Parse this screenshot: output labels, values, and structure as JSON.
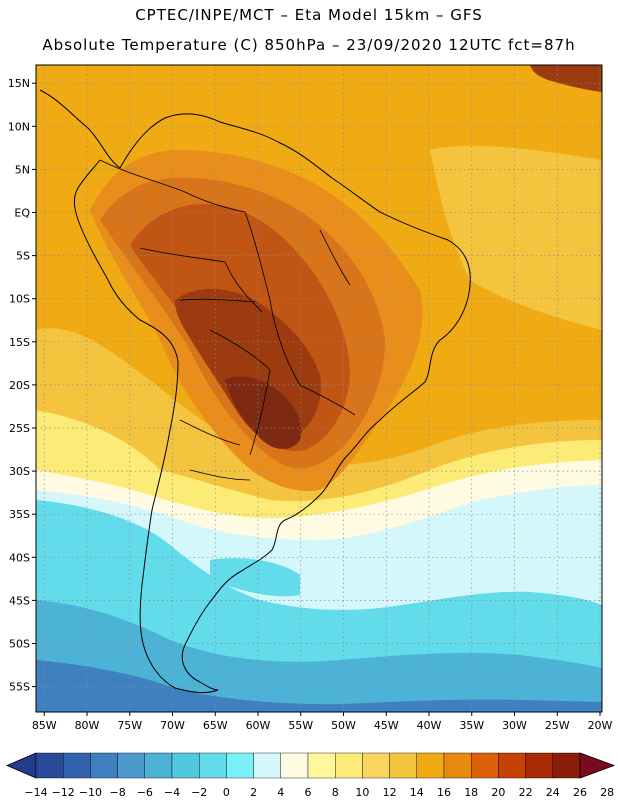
{
  "title": {
    "line1": "CPTEC/INPE/MCT –  Eta Model 15km – GFS",
    "line2": "Absolute Temperature (C) 850hPa – 23/09/2020 12UTC fct=87h"
  },
  "axes": {
    "lat_ticks": [
      {
        "label": "15N",
        "value": 15
      },
      {
        "label": "10N",
        "value": 10
      },
      {
        "label": "5N",
        "value": 5
      },
      {
        "label": "EQ",
        "value": 0
      },
      {
        "label": "5S",
        "value": -5
      },
      {
        "label": "10S",
        "value": -10
      },
      {
        "label": "15S",
        "value": -15
      },
      {
        "label": "20S",
        "value": -20
      },
      {
        "label": "25S",
        "value": -25
      },
      {
        "label": "30S",
        "value": -30
      },
      {
        "label": "35S",
        "value": -35
      },
      {
        "label": "40S",
        "value": -40
      },
      {
        "label": "45S",
        "value": -45
      },
      {
        "label": "50S",
        "value": -50
      },
      {
        "label": "55S",
        "value": -55
      }
    ],
    "lon_ticks": [
      {
        "label": "85W",
        "value": -85
      },
      {
        "label": "80W",
        "value": -80
      },
      {
        "label": "75W",
        "value": -75
      },
      {
        "label": "70W",
        "value": -70
      },
      {
        "label": "65W",
        "value": -65
      },
      {
        "label": "60W",
        "value": -60
      },
      {
        "label": "55W",
        "value": -55
      },
      {
        "label": "50W",
        "value": -50
      },
      {
        "label": "45W",
        "value": -45
      },
      {
        "label": "40W",
        "value": -40
      },
      {
        "label": "35W",
        "value": -35
      },
      {
        "label": "30W",
        "value": -30
      },
      {
        "label": "25W",
        "value": -25
      },
      {
        "label": "20W",
        "value": -20
      }
    ]
  },
  "colorbar": {
    "low_color": "#233c8c",
    "high_color": "#7a0a1e",
    "colors": [
      "#2a4a9a",
      "#3362ad",
      "#3f80c0",
      "#4c9acc",
      "#4cb2d6",
      "#4fc8e0",
      "#62dbea",
      "#7af0f8",
      "#d4f7fb",
      "#fffbe3",
      "#fff69e",
      "#fdeb78",
      "#f9d55e",
      "#f4c43e",
      "#f0ab14",
      "#e98a10",
      "#dc6108",
      "#c44204",
      "#a82a05",
      "#8a1c0a"
    ],
    "labels": [
      "-14",
      "-12",
      "-10",
      "-8",
      "-6",
      "-4",
      "-2",
      "0",
      "2",
      "4",
      "6",
      "8",
      "10",
      "12",
      "14",
      "16",
      "18",
      "20",
      "22",
      "24",
      "26",
      "28"
    ]
  },
  "field_colors": {
    "very_hot": "#7e2a12",
    "hot": "#9c3a10",
    "warm3": "#c05514",
    "warm2": "#d87419",
    "warm1": "#e98e1a",
    "orange": "#f0ab14",
    "gold": "#f4c43e",
    "yellow": "#fdeb78",
    "pale": "#fff69e",
    "cream": "#fffbe3",
    "ice": "#d4f7fb",
    "cyan": "#62dbea",
    "teal": "#4cb2d6",
    "blue": "#3f80c0",
    "coast": "#000000"
  }
}
